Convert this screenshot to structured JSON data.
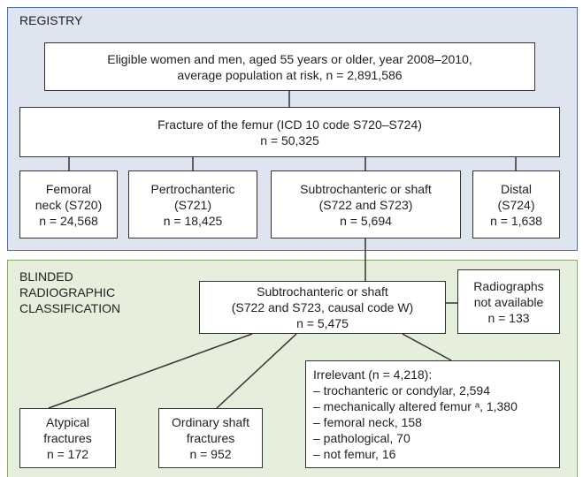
{
  "registry": {
    "label": "REGISTRY",
    "eligible": {
      "lines": [
        "Eligible women and men, aged 55 years or older, year 2008–2010,",
        "average population at risk, n = 2,891,586"
      ]
    },
    "fracture": {
      "lines": [
        "Fracture of the femur (ICD 10 code S720–S724)",
        "n = 50,325"
      ]
    },
    "subgroups": [
      {
        "lines": [
          "Femoral",
          "neck (S720)",
          "n = 24,568"
        ]
      },
      {
        "lines": [
          "Pertrochanteric",
          "(S721)",
          "n = 18,425"
        ]
      },
      {
        "lines": [
          "Subtrochanteric or shaft",
          "(S722 and S723)",
          "n = 5,694"
        ]
      },
      {
        "lines": [
          "Distal",
          "(S724)",
          "n = 1,638"
        ]
      }
    ]
  },
  "classification": {
    "label_lines": [
      "BLINDED",
      "RADIOGRAPHIC",
      "CLASSIFICATION"
    ],
    "subtrochanteric": {
      "lines": [
        "Subtrochanteric or shaft",
        "(S722 and S723, causal code W)",
        "n = 5,475"
      ]
    },
    "not_available": {
      "lines": [
        "Radiographs",
        "not available",
        "n = 133"
      ]
    },
    "irrelevant": {
      "lines": [
        "Irrelevant (n = 4,218):",
        "– trochanteric or condylar, 2,594",
        "– mechanically altered femur ᵃ, 1,380",
        "– femoral neck, 158",
        "– pathological, 70",
        "– not femur, 16"
      ]
    },
    "atypical": {
      "lines": [
        "Atypical",
        "fractures",
        "n = 172"
      ]
    },
    "ordinary": {
      "lines": [
        "Ordinary shaft",
        "fractures",
        "n = 952"
      ]
    }
  }
}
